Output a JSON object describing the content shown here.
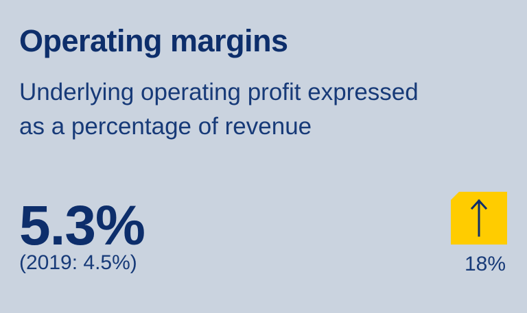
{
  "card": {
    "title": "Operating margins",
    "subtitle_lines": [
      "Underlying operating profit expressed",
      "as a percentage of revenue"
    ],
    "value": "5.3%",
    "prior_value": "(2019: 4.5%)",
    "change": "18%",
    "trend_icon": "up-arrow-icon",
    "colors": {
      "background": "#cad3df",
      "text": "#0d2e6b",
      "badge": "#ffcc00"
    }
  }
}
